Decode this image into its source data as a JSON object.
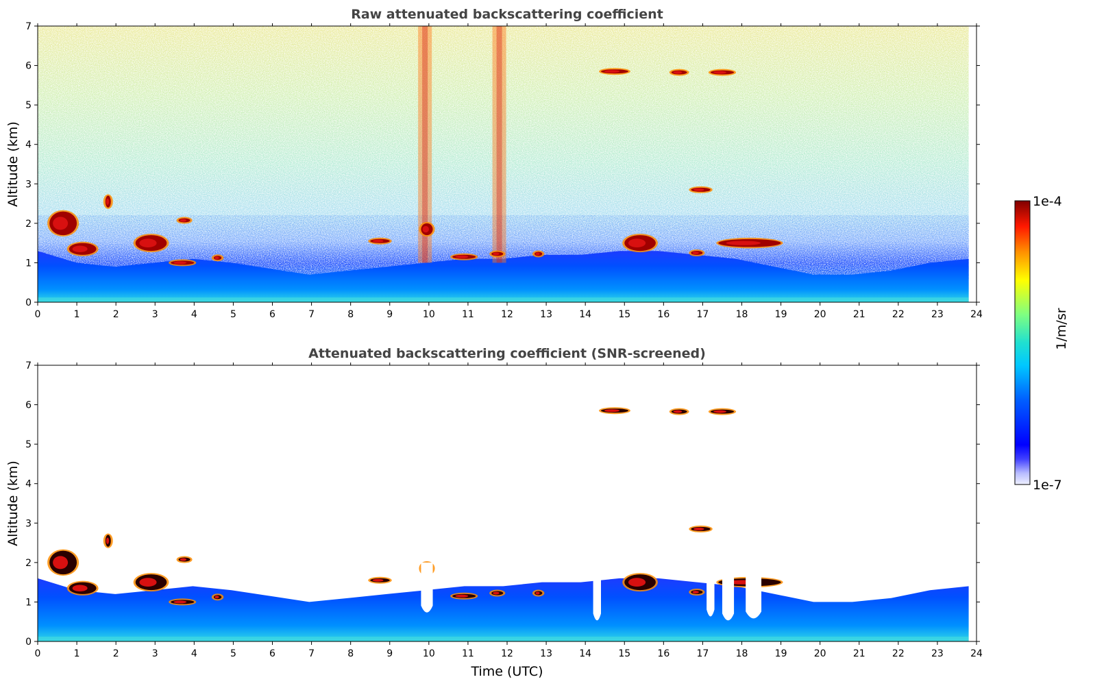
{
  "chart_data": {
    "type": "heatmap",
    "panels": [
      {
        "title": "Raw attenuated backscattering coefficient",
        "xlabel": "",
        "ylabel": "Altitude (km)",
        "xlim": [
          0,
          24
        ],
        "ylim": [
          0,
          7
        ],
        "x_ticks": [
          "0",
          "1",
          "2",
          "3",
          "4",
          "5",
          "6",
          "7",
          "8",
          "9",
          "10",
          "11",
          "12",
          "13",
          "14",
          "15",
          "16",
          "17",
          "18",
          "19",
          "20",
          "21",
          "22",
          "23",
          "24"
        ],
        "y_ticks": [
          "0",
          "1",
          "2",
          "3",
          "4",
          "5",
          "6",
          "7"
        ],
        "data_extent_hours": [
          0,
          23.8
        ],
        "screened": false,
        "features": [
          {
            "kind": "boundary_layer",
            "x": [
              0,
              23.8
            ],
            "top_km": [
              1.3,
              1.0,
              0.9,
              1.0,
              1.1,
              1.0,
              0.85,
              0.7,
              0.8,
              0.9,
              1.0,
              1.1,
              1.1,
              1.2,
              1.2,
              1.3,
              1.3,
              1.2,
              1.1,
              0.9,
              0.7,
              0.7,
              0.8,
              1.0,
              1.1
            ]
          },
          {
            "kind": "noise_streak",
            "x": 9.9
          },
          {
            "kind": "noise_streak",
            "x": 11.8
          },
          {
            "kind": "cloud",
            "x": [
              0.3,
              1.0
            ],
            "y": [
              1.7,
              2.3
            ]
          },
          {
            "kind": "cloud",
            "x": [
              0.8,
              1.5
            ],
            "y": [
              1.2,
              1.5
            ]
          },
          {
            "kind": "cloud",
            "x": [
              1.75,
              1.85
            ],
            "y": [
              2.4,
              2.7
            ]
          },
          {
            "kind": "cloud",
            "x": [
              2.5,
              3.3
            ],
            "y": [
              1.3,
              1.7
            ]
          },
          {
            "kind": "cloud",
            "x": [
              3.4,
              4.0
            ],
            "y": [
              0.95,
              1.05
            ]
          },
          {
            "kind": "cloud",
            "x": [
              3.6,
              3.9
            ],
            "y": [
              2.05,
              2.1
            ]
          },
          {
            "kind": "cloud",
            "x": [
              4.5,
              4.7
            ],
            "y": [
              1.1,
              1.15
            ]
          },
          {
            "kind": "cloud",
            "x": [
              8.5,
              9.0
            ],
            "y": [
              1.5,
              1.6
            ]
          },
          {
            "kind": "cloud",
            "x": [
              9.8,
              10.1
            ],
            "y": [
              1.7,
              2.0
            ]
          },
          {
            "kind": "cloud",
            "x": [
              10.6,
              11.2
            ],
            "y": [
              1.1,
              1.2
            ]
          },
          {
            "kind": "cloud",
            "x": [
              11.6,
              11.9
            ],
            "y": [
              1.2,
              1.25
            ]
          },
          {
            "kind": "cloud",
            "x": [
              12.7,
              12.9
            ],
            "y": [
              1.2,
              1.25
            ]
          },
          {
            "kind": "cloud",
            "x": [
              14.4,
              15.1
            ],
            "y": [
              5.8,
              5.9
            ]
          },
          {
            "kind": "cloud",
            "x": [
              15.0,
              15.8
            ],
            "y": [
              1.3,
              1.7
            ]
          },
          {
            "kind": "cloud",
            "x": [
              16.2,
              16.6
            ],
            "y": [
              5.8,
              5.85
            ]
          },
          {
            "kind": "cloud",
            "x": [
              16.7,
              17.2
            ],
            "y": [
              2.8,
              2.9
            ]
          },
          {
            "kind": "cloud",
            "x": [
              16.7,
              17.0
            ],
            "y": [
              1.2,
              1.3
            ]
          },
          {
            "kind": "cloud",
            "x": [
              17.2,
              17.8
            ],
            "y": [
              5.8,
              5.85
            ]
          },
          {
            "kind": "cloud",
            "x": [
              17.4,
              19.0
            ],
            "y": [
              1.4,
              1.6
            ]
          }
        ]
      },
      {
        "title": "Attenuated backscattering coefficient (SNR-screened)",
        "xlabel": "Time (UTC)",
        "ylabel": "Altitude (km)",
        "xlim": [
          0,
          24
        ],
        "ylim": [
          0,
          7
        ],
        "x_ticks": [
          "0",
          "1",
          "2",
          "3",
          "4",
          "5",
          "6",
          "7",
          "8",
          "9",
          "10",
          "11",
          "12",
          "13",
          "14",
          "15",
          "16",
          "17",
          "18",
          "19",
          "20",
          "21",
          "22",
          "23",
          "24"
        ],
        "y_ticks": [
          "0",
          "1",
          "2",
          "3",
          "4",
          "5",
          "6",
          "7"
        ],
        "data_extent_hours": [
          0,
          23.8
        ],
        "screened": true,
        "gaps": [
          {
            "x": [
              9.8,
              10.1
            ],
            "y_bottom_km": 0.7
          },
          {
            "x": [
              14.2,
              14.4
            ],
            "y_bottom_km": 0.5
          },
          {
            "x": [
              17.1,
              17.3
            ],
            "y_bottom_km": 0.6
          },
          {
            "x": [
              17.5,
              17.8
            ],
            "y_bottom_km": 0.5
          },
          {
            "x": [
              18.1,
              18.5
            ],
            "y_bottom_km": 0.55
          }
        ]
      }
    ],
    "colorbar": {
      "label": "1/m/sr",
      "min_label": "1e-7",
      "max_label": "1e-4",
      "scale": "log",
      "colormap": "jet",
      "colors": [
        "#ffffff",
        "#c8c8ff",
        "#0000ff",
        "#00a0ff",
        "#00ffff",
        "#80ff80",
        "#ffff00",
        "#ff8000",
        "#ff0000",
        "#800000"
      ]
    }
  }
}
